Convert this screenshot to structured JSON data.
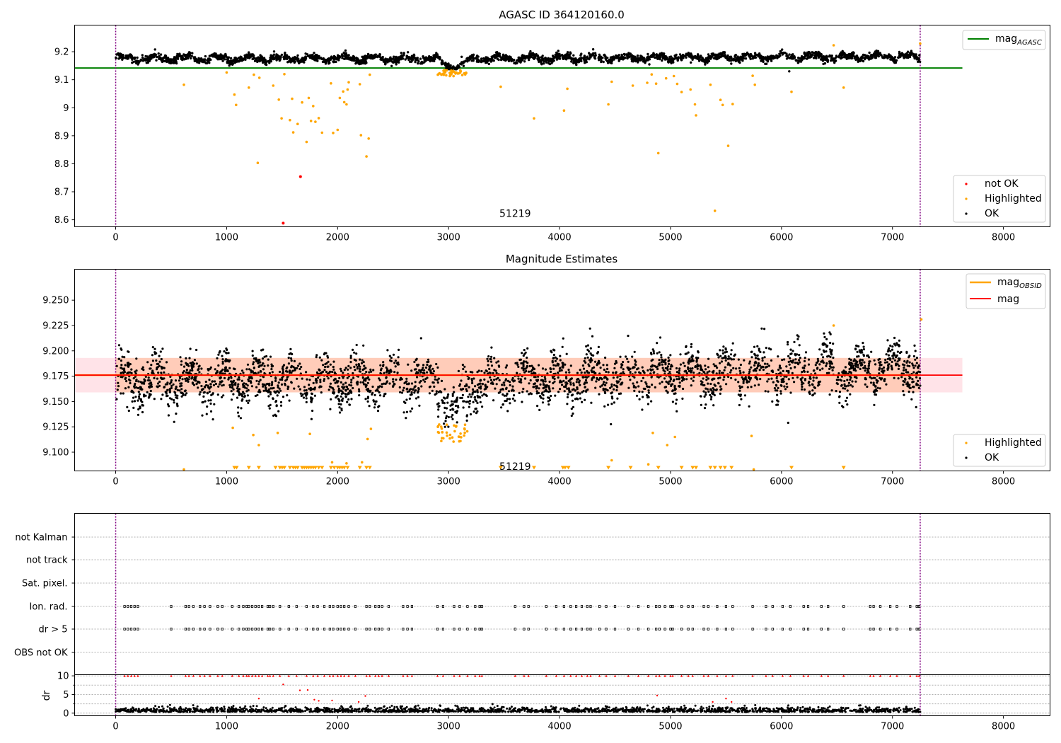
{
  "chart_data": [
    {
      "type": "scatter",
      "title": "AGASC ID 364120160.0",
      "xlabel": "",
      "ylabel": "",
      "xlim": [
        -370,
        8420
      ],
      "ylim": [
        8.575,
        9.295
      ],
      "x_ticks": [
        0,
        1000,
        2000,
        3000,
        4000,
        5000,
        6000,
        7000,
        8000
      ],
      "y_ticks": [
        8.6,
        8.7,
        8.8,
        8.9,
        9.0,
        9.1,
        9.2
      ],
      "grid": false,
      "reference_line": {
        "name": "mag",
        "subscript": "AGASC",
        "y": 9.142,
        "x_range": [
          -370,
          7630
        ],
        "color": "#008000"
      },
      "vertical_lines": [
        0,
        7250
      ],
      "annotation": {
        "text": "51219",
        "x": 3600,
        "y": 8.6
      },
      "series": [
        {
          "name": "not OK",
          "color": "#ff0000",
          "points": [
            [
              1510,
              8.588
            ],
            [
              1665,
              8.754
            ]
          ]
        },
        {
          "name": "Highlighted",
          "color": "#ffa500",
          "points": [
            [
              615,
              9.082
            ],
            [
              1000,
              9.126
            ],
            [
              1070,
              9.047
            ],
            [
              1085,
              9.01
            ],
            [
              1200,
              9.072
            ],
            [
              1245,
              9.118
            ],
            [
              1280,
              8.803
            ],
            [
              1295,
              9.107
            ],
            [
              1420,
              9.079
            ],
            [
              1470,
              9.029
            ],
            [
              1495,
              8.962
            ],
            [
              1520,
              9.12
            ],
            [
              1570,
              8.956
            ],
            [
              1590,
              9.032
            ],
            [
              1600,
              8.912
            ],
            [
              1640,
              8.942
            ],
            [
              1680,
              9.019
            ],
            [
              1720,
              8.878
            ],
            [
              1740,
              9.035
            ],
            [
              1760,
              8.953
            ],
            [
              1780,
              9.006
            ],
            [
              1800,
              8.95
            ],
            [
              1830,
              8.963
            ],
            [
              1860,
              8.911
            ],
            [
              1940,
              9.087
            ],
            [
              1960,
              8.91
            ],
            [
              2000,
              8.921
            ],
            [
              2020,
              9.035
            ],
            [
              2050,
              9.058
            ],
            [
              2060,
              9.02
            ],
            [
              2080,
              9.012
            ],
            [
              2090,
              9.065
            ],
            [
              2100,
              9.091
            ],
            [
              2200,
              9.084
            ],
            [
              2210,
              8.902
            ],
            [
              2260,
              8.826
            ],
            [
              2280,
              8.89
            ],
            [
              2290,
              9.118
            ],
            [
              3470,
              9.075
            ],
            [
              3770,
              8.962
            ],
            [
              4040,
              8.99
            ],
            [
              4070,
              9.068
            ],
            [
              4440,
              9.012
            ],
            [
              4470,
              9.093
            ],
            [
              4660,
              9.079
            ],
            [
              4790,
              9.089
            ],
            [
              4830,
              9.119
            ],
            [
              4870,
              9.086
            ],
            [
              4890,
              8.838
            ],
            [
              4960,
              9.105
            ],
            [
              5030,
              9.113
            ],
            [
              5060,
              9.085
            ],
            [
              5100,
              9.056
            ],
            [
              5180,
              9.065
            ],
            [
              5220,
              9.012
            ],
            [
              5230,
              8.973
            ],
            [
              5360,
              9.082
            ],
            [
              5400,
              8.632
            ],
            [
              5450,
              9.028
            ],
            [
              5470,
              9.01
            ],
            [
              5520,
              8.864
            ],
            [
              5560,
              9.013
            ],
            [
              5740,
              9.114
            ],
            [
              5760,
              9.082
            ],
            [
              6090,
              9.057
            ],
            [
              6470,
              9.223
            ],
            [
              6560,
              9.072
            ],
            [
              7250,
              9.229
            ]
          ]
        },
        {
          "name": "OK",
          "color": "#000000",
          "generated_band": {
            "x_range": [
              0,
              7250
            ],
            "points": 2600,
            "baseline": 9.176,
            "spread": 0.014
          },
          "points": [
            [
              6070,
              9.13
            ]
          ]
        }
      ],
      "dip_points_orange": {
        "x_range": [
          2900,
          3170
        ],
        "y_range": [
          9.112,
          9.135
        ]
      },
      "legend_upper": {
        "location": "upper right"
      },
      "legend_lower": {
        "location": "lower right"
      }
    },
    {
      "type": "scatter",
      "title": "Magnitude Estimates",
      "xlabel": "",
      "ylabel": "",
      "xlim": [
        -370,
        8420
      ],
      "ylim": [
        9.0815,
        9.2805
      ],
      "x_ticks": [
        0,
        1000,
        2000,
        3000,
        4000,
        5000,
        6000,
        7000,
        8000
      ],
      "y_ticks": [
        9.1,
        9.125,
        9.15,
        9.175,
        9.2,
        9.225,
        9.25
      ],
      "y_tick_labels": [
        "9.100",
        "9.125",
        "9.150",
        "9.175",
        "9.200",
        "9.225",
        "9.250"
      ],
      "grid": false,
      "mag_line": {
        "name": "mag",
        "y": 9.176,
        "x_range": [
          -370,
          7630
        ],
        "color": "#ff0000"
      },
      "mag_band": {
        "y_range": [
          9.159,
          9.193
        ],
        "x_range": [
          -370,
          7630
        ]
      },
      "mag_obsid": {
        "name": "mag",
        "subscript": "OBSID",
        "color": "#ffa500",
        "x_range": [
          -370,
          7250
        ],
        "y": 9.176
      },
      "vertical_lines": [
        0,
        7250
      ],
      "annotation": {
        "text": "51219",
        "x": 3600,
        "y": 9.086
      },
      "series": [
        {
          "name": "Highlighted",
          "color": "#ffa500",
          "points": [
            [
              615,
              9.083
            ],
            [
              1055,
              9.124
            ],
            [
              1240,
              9.117
            ],
            [
              1290,
              9.107
            ],
            [
              1460,
              9.119
            ],
            [
              1750,
              9.118
            ],
            [
              1950,
              9.09
            ],
            [
              2080,
              9.089
            ],
            [
              2220,
              9.09
            ],
            [
              2270,
              9.113
            ],
            [
              2300,
              9.123
            ],
            [
              4470,
              9.092
            ],
            [
              4800,
              9.088
            ],
            [
              4840,
              9.119
            ],
            [
              4970,
              9.107
            ],
            [
              5040,
              9.115
            ],
            [
              5730,
              9.116
            ],
            [
              5750,
              9.083
            ],
            [
              6470,
              9.225
            ],
            [
              7260,
              9.231
            ]
          ]
        },
        {
          "name": "OK",
          "color": "#000000",
          "generated_band": {
            "x_range": [
              0,
              7250
            ],
            "points": 3000
          },
          "points": [
            [
              6060,
              9.129
            ]
          ]
        }
      ],
      "below_range_markers_x": [
        1070,
        1090,
        1200,
        1290,
        1440,
        1480,
        1500,
        1520,
        1570,
        1600,
        1620,
        1640,
        1680,
        1700,
        1720,
        1740,
        1760,
        1780,
        1800,
        1830,
        1860,
        1940,
        1970,
        2000,
        2020,
        2040,
        2060,
        2090,
        2200,
        2260,
        2290,
        3470,
        3770,
        4030,
        4050,
        4080,
        4440,
        4640,
        4890,
        5100,
        5200,
        5230,
        5360,
        5400,
        5450,
        5490,
        5550,
        6090,
        6560
      ],
      "legend_upper": {
        "location": "upper right"
      },
      "legend_lower": {
        "location": "lower right"
      }
    },
    {
      "type": "scatter",
      "title": "",
      "xlabel": "",
      "ylabel": "",
      "xlim": [
        -370,
        8420
      ],
      "categories": [
        "not Kalman",
        "not track",
        "Sat. pixel.",
        "Ion. rad.",
        "dr > 5",
        "OBS not OK"
      ],
      "grid": true,
      "vertical_lines": [
        0,
        7250
      ],
      "flag_x": [
        80,
        110,
        140,
        170,
        200,
        500,
        630,
        660,
        700,
        760,
        800,
        850,
        920,
        960,
        1050,
        1110,
        1150,
        1180,
        1200,
        1230,
        1260,
        1290,
        1320,
        1370,
        1390,
        1420,
        1480,
        1560,
        1630,
        1720,
        1780,
        1820,
        1880,
        1930,
        1960,
        2000,
        2030,
        2060,
        2100,
        2160,
        2260,
        2290,
        2340,
        2370,
        2400,
        2460,
        2590,
        2630,
        2670,
        2900,
        2950,
        3050,
        3100,
        3170,
        3240,
        3280,
        3300,
        3600,
        3680,
        3720,
        3880,
        3970,
        4040,
        4100,
        4150,
        4200,
        4250,
        4280,
        4360,
        4420,
        4500,
        4620,
        4710,
        4800,
        4870,
        4900,
        4950,
        5000,
        5020,
        5100,
        5160,
        5200,
        5300,
        5340,
        5420,
        5500,
        5560,
        5740,
        5860,
        5920,
        6010,
        6080,
        6200,
        6240,
        6360,
        6420,
        6560,
        6800,
        6830,
        6890,
        6980,
        7040,
        7160,
        7220,
        7240
      ]
    },
    {
      "type": "scatter",
      "title": "",
      "xlabel": "",
      "ylabel": "dr",
      "xlim": [
        -370,
        8420
      ],
      "ylim": [
        -0.7,
        10.3
      ],
      "y_ticks": [
        0,
        5,
        10
      ],
      "x_ticks": [
        0,
        1000,
        2000,
        3000,
        4000,
        5000,
        6000,
        7000,
        8000
      ],
      "grid": true,
      "vertical_lines": [
        0,
        7250
      ],
      "series": [
        {
          "name": "dr",
          "color": "#000000",
          "generated_band": {
            "x_range": [
              0,
              7250
            ],
            "points": 1800,
            "max": 2.5
          }
        },
        {
          "name": "dr>10",
          "color": "#ff0000",
          "marker": "triangle",
          "y": 10
        },
        {
          "name": "dr outliers",
          "color": "#ff0000",
          "points": [
            [
              1290,
              3.9
            ],
            [
              1510,
              7.7
            ],
            [
              1660,
              6.1
            ],
            [
              1730,
              6.2
            ],
            [
              1790,
              3.6
            ],
            [
              1830,
              3.3
            ],
            [
              1950,
              3.4
            ],
            [
              2190,
              3.0
            ],
            [
              2250,
              4.6
            ],
            [
              4880,
              4.7
            ],
            [
              5380,
              3.0
            ],
            [
              5500,
              3.9
            ],
            [
              5550,
              3.0
            ]
          ]
        }
      ]
    }
  ]
}
